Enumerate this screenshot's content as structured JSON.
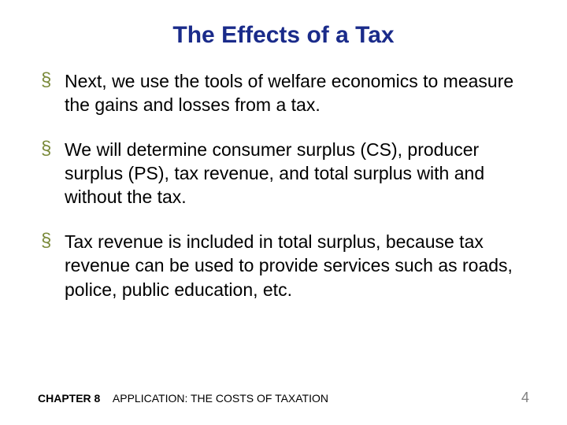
{
  "title": {
    "text": "The Effects of a Tax",
    "color": "#1a2b8a",
    "fontsize": 30
  },
  "bullets": {
    "marker_color": "#7a8a3a",
    "text_color": "#000000",
    "fontsize": 23,
    "items": [
      "Next, we use the tools of welfare economics to measure the gains and losses from a tax.",
      "We will determine consumer surplus (CS), producer surplus (PS), tax revenue, and total surplus with and without the tax.",
      "Tax revenue is included in total surplus, because tax revenue can be used to provide services such as roads, police, public education, etc."
    ]
  },
  "footer": {
    "chapter_label": "CHAPTER 8",
    "subtitle": "APPLICATION:  THE COSTS OF TAXATION",
    "fontsize": 14,
    "page_number": "4",
    "page_color": "#808080",
    "page_fontsize": 18
  },
  "background_color": "#ffffff"
}
